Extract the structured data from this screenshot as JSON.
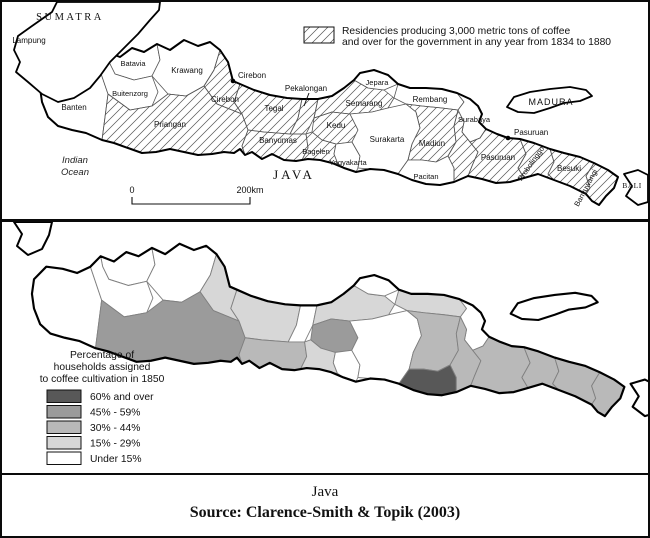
{
  "top_map": {
    "legend": {
      "line1": "Residencies producing 3,000 metric tons of coffee",
      "line2": "and over for the government in any year from 1834 to 1880"
    },
    "labels": {
      "sumatra": "SUMATRA",
      "lampung": "Lampung",
      "banten": "Banten",
      "batavia": "Batavia",
      "buitenzorg": "Buitenzorg",
      "krawang": "Krawang",
      "cirebon_town": "Cirebon",
      "cirebon": "Cirebon",
      "priangan": "Priangan",
      "tegal": "Tegal",
      "pekalongan": "Pekalongan",
      "banyumas": "Banyumas",
      "kedu": "Kedu",
      "bagelen": "Bagelen",
      "yogyakarta": "Yogyakarta",
      "semarang": "Semarang",
      "jepara": "Jepara",
      "surakarta": "Surakarta",
      "rembang": "Rembang",
      "madiun": "Madiun",
      "pacitan": "Pacitan",
      "surabaya": "Surabaya",
      "kediri": "Kediri",
      "pasuruan_town": "Pasuruan",
      "pasuruan": "Pasuruan",
      "probolinggo": "Probolinggo",
      "besuki": "Besuki",
      "banyuwangi": "Banyuwangi",
      "madura": "MADURA",
      "bali": "BALI",
      "java": "JAVA",
      "indian_ocean_line1": "Indian",
      "indian_ocean_line2": "Ocean"
    },
    "scale": {
      "zero": "0",
      "end": "200km"
    },
    "hatched_residencies": [
      "Priangan",
      "Cirebon",
      "Tegal",
      "Pekalongan",
      "Banyumas",
      "Kedu",
      "Bagelen",
      "Semarang",
      "Madiun",
      "Kediri",
      "Pasuruan",
      "Probolinggo",
      "Besuki",
      "Banyuwangi"
    ]
  },
  "bottom_map": {
    "legend": {
      "title_line1": "Percentage of",
      "title_line2": "households assigned",
      "title_line3": "to coffee cultivation in 1850",
      "classes": [
        {
          "label": "60% and over",
          "color": "#585858"
        },
        {
          "label": "45% - 59%",
          "color": "#9b9b9b"
        },
        {
          "label": "30% - 44%",
          "color": "#b9b9b9"
        },
        {
          "label": "15% - 29%",
          "color": "#d7d7d7"
        },
        {
          "label": "Under 15%",
          "color": "#ffffff"
        }
      ]
    },
    "assignments": {
      "banten": "Under 15%",
      "batavia": "Under 15%",
      "buitenzorg": "Under 15%",
      "krawang": "Under 15%",
      "priangan": "45% - 59%",
      "cirebon": "15% - 29%",
      "tegal": "15% - 29%",
      "pekalongan": "Under 15%",
      "banyumas": "30% - 44%",
      "kedu": "45% - 59%",
      "bagelen": "15% - 29%",
      "yogyakarta": "Under 15%",
      "semarang": "15% - 29%",
      "jepara": "Under 15%",
      "surakarta": "Under 15%",
      "rembang": "15% - 29%",
      "madiun": "30% - 44%",
      "pacitan": "60% and over",
      "surabaya": "Under 15%",
      "kediri": "30% - 44%",
      "pasuruan": "30% - 44%",
      "probolinggo": "30% - 44%",
      "besuki": "30% - 44%",
      "banyuwangi": "30% - 44%",
      "madura": "Under 15%"
    }
  },
  "caption": {
    "title": "Java",
    "source": "Source: Clarence-Smith & Topik (2003)"
  },
  "colors": {
    "outline": "#000000",
    "inner_border_top": "#565656",
    "inner_border_bottom": "#808080",
    "hatch_line": "#555555"
  }
}
